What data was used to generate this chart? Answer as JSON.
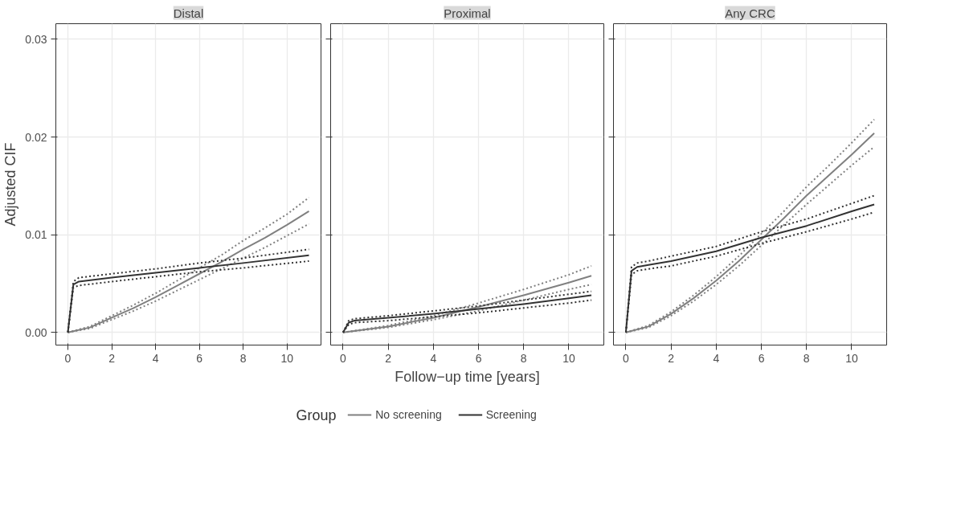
{
  "chart_data": [
    {
      "type": "line",
      "title": "Distal",
      "ylabel": "Adjusted CIF",
      "xlim": [
        -0.55,
        11.55
      ],
      "ylim": [
        -0.0013,
        0.0316
      ],
      "xticks": [
        0,
        2,
        4,
        6,
        8,
        10
      ],
      "yticks": [
        {
          "value": 0,
          "label": "0.00"
        },
        {
          "value": 0.01,
          "label": "0.01"
        },
        {
          "value": 0.02,
          "label": "0.02"
        },
        {
          "value": 0.03,
          "label": "0.03"
        }
      ],
      "grid": true,
      "line_style": "solid",
      "series": [
        {
          "color": "#808080",
          "x": [
            0,
            1,
            2,
            3,
            4,
            5,
            6,
            7,
            8,
            9,
            10,
            11
          ],
          "values": [
            0,
            0.0005,
            0.0015,
            0.0025,
            0.0036,
            0.0048,
            0.006,
            0.0072,
            0.0085,
            0.0097,
            0.011,
            0.0124
          ]
        },
        {
          "color": "#808080",
          "line_style": "dotted",
          "x": [
            0,
            1,
            2,
            3,
            4,
            5,
            6,
            7,
            8,
            9,
            10,
            11
          ],
          "values": [
            0,
            0.0004,
            0.0013,
            0.0022,
            0.0032,
            0.0043,
            0.0054,
            0.0065,
            0.0076,
            0.0087,
            0.0099,
            0.0111
          ]
        },
        {
          "color": "#808080",
          "line_style": "dotted",
          "x": [
            0,
            1,
            2,
            3,
            4,
            5,
            6,
            7,
            8,
            9,
            10,
            11
          ],
          "values": [
            0,
            0.0006,
            0.0017,
            0.0028,
            0.004,
            0.0053,
            0.0066,
            0.0079,
            0.0094,
            0.0107,
            0.0121,
            0.0138
          ]
        },
        {
          "color": "#333333",
          "x": [
            0,
            0.25,
            0.5,
            2,
            4,
            6,
            8,
            11
          ],
          "values": [
            0,
            0.0049,
            0.0052,
            0.0056,
            0.0061,
            0.0066,
            0.0071,
            0.0079
          ]
        },
        {
          "color": "#333333",
          "line_style": "dotted",
          "x": [
            0,
            0.25,
            0.5,
            2,
            4,
            6,
            8,
            11
          ],
          "values": [
            0,
            0.0046,
            0.0048,
            0.0052,
            0.0057,
            0.0062,
            0.0066,
            0.0073
          ]
        },
        {
          "color": "#333333",
          "line_style": "dotted",
          "x": [
            0,
            0.25,
            0.5,
            2,
            4,
            6,
            8,
            11
          ],
          "values": [
            0,
            0.0052,
            0.0056,
            0.006,
            0.0065,
            0.0071,
            0.0076,
            0.0085
          ]
        }
      ]
    },
    {
      "type": "line",
      "title": "Proximal",
      "xlabel": "Follow−up time [years]",
      "xlim": [
        -0.55,
        11.55
      ],
      "ylim": [
        -0.0013,
        0.0316
      ],
      "xticks": [
        0,
        2,
        4,
        6,
        8,
        10
      ],
      "yticks": [
        {
          "value": 0,
          "label": null
        },
        {
          "value": 0.01,
          "label": null
        },
        {
          "value": 0.02,
          "label": null
        },
        {
          "value": 0.03,
          "label": null
        }
      ],
      "tick_labels": "x",
      "grid": true,
      "line_style": "solid",
      "legend": "bottom",
      "legend_title": "Group",
      "series": [
        {
          "name": "No screening",
          "color": "#808080",
          "x": [
            0,
            2,
            4,
            6,
            8,
            10,
            11
          ],
          "values": [
            0,
            0.0006,
            0.0015,
            0.0026,
            0.0038,
            0.0051,
            0.0058
          ]
        },
        {
          "color": "#808080",
          "line_style": "dotted",
          "x": [
            0,
            2,
            4,
            6,
            8,
            10,
            11
          ],
          "values": [
            0,
            0.0005,
            0.0013,
            0.0022,
            0.0033,
            0.0044,
            0.0049
          ]
        },
        {
          "color": "#808080",
          "line_style": "dotted",
          "x": [
            0,
            2,
            4,
            6,
            8,
            10,
            11
          ],
          "values": [
            0,
            0.0007,
            0.0017,
            0.003,
            0.0044,
            0.0059,
            0.0068
          ]
        },
        {
          "name": "Screening",
          "color": "#333333",
          "x": [
            0,
            0.25,
            0.5,
            2,
            4,
            6,
            8,
            10,
            11
          ],
          "values": [
            0,
            0.001,
            0.0012,
            0.0015,
            0.0019,
            0.0024,
            0.0029,
            0.0035,
            0.0038
          ]
        },
        {
          "color": "#333333",
          "line_style": "dotted",
          "x": [
            0,
            0.25,
            0.5,
            2,
            4,
            6,
            8,
            10,
            11
          ],
          "values": [
            0,
            0.0008,
            0.001,
            0.0012,
            0.0016,
            0.002,
            0.0025,
            0.003,
            0.0033
          ]
        },
        {
          "color": "#333333",
          "line_style": "dotted",
          "x": [
            0,
            0.25,
            0.5,
            2,
            4,
            6,
            8,
            10,
            11
          ],
          "values": [
            0,
            0.0012,
            0.0014,
            0.0017,
            0.0022,
            0.0027,
            0.0033,
            0.0039,
            0.0042
          ]
        }
      ]
    },
    {
      "type": "line",
      "title": "Any CRC",
      "xlim": [
        -0.55,
        11.55
      ],
      "ylim": [
        -0.0013,
        0.0316
      ],
      "xticks": [
        0,
        2,
        4,
        6,
        8,
        10
      ],
      "yticks": [
        {
          "value": 0,
          "label": null
        },
        {
          "value": 0.01,
          "label": null
        },
        {
          "value": 0.02,
          "label": null
        },
        {
          "value": 0.03,
          "label": null
        }
      ],
      "tick_labels": "x",
      "grid": true,
      "line_style": "solid",
      "series": [
        {
          "color": "#808080",
          "x": [
            0,
            1,
            2,
            3,
            4,
            5,
            6,
            7,
            8,
            9,
            10,
            11
          ],
          "values": [
            0,
            0.0006,
            0.0019,
            0.0035,
            0.0053,
            0.0073,
            0.0095,
            0.0117,
            0.014,
            0.0161,
            0.0182,
            0.0204
          ]
        },
        {
          "color": "#808080",
          "line_style": "dotted",
          "x": [
            0,
            1,
            2,
            3,
            4,
            5,
            6,
            7,
            8,
            9,
            10,
            11
          ],
          "values": [
            0,
            0.0005,
            0.0017,
            0.0032,
            0.0049,
            0.0068,
            0.0089,
            0.011,
            0.0131,
            0.0151,
            0.0171,
            0.019
          ]
        },
        {
          "color": "#808080",
          "line_style": "dotted",
          "x": [
            0,
            1,
            2,
            3,
            4,
            5,
            6,
            7,
            8,
            9,
            10,
            11
          ],
          "values": [
            0,
            0.0007,
            0.0021,
            0.0038,
            0.0057,
            0.0078,
            0.0101,
            0.0124,
            0.0149,
            0.0171,
            0.0194,
            0.0218
          ]
        },
        {
          "color": "#333333",
          "x": [
            0,
            0.25,
            0.5,
            1,
            2,
            4,
            6,
            8,
            10,
            11
          ],
          "values": [
            0,
            0.0063,
            0.0067,
            0.0069,
            0.0073,
            0.0083,
            0.0097,
            0.0109,
            0.0124,
            0.0131
          ]
        },
        {
          "color": "#333333",
          "line_style": "dotted",
          "x": [
            0,
            0.25,
            0.5,
            1,
            2,
            4,
            6,
            8,
            10,
            11
          ],
          "values": [
            0,
            0.0059,
            0.0063,
            0.0065,
            0.0068,
            0.0078,
            0.0091,
            0.0103,
            0.0116,
            0.0123
          ]
        },
        {
          "color": "#333333",
          "line_style": "dotted",
          "x": [
            0,
            0.25,
            0.5,
            1,
            2,
            4,
            6,
            8,
            10,
            11
          ],
          "values": [
            0,
            0.0067,
            0.0071,
            0.0073,
            0.0078,
            0.0088,
            0.0103,
            0.0116,
            0.0132,
            0.014
          ]
        }
      ]
    }
  ]
}
